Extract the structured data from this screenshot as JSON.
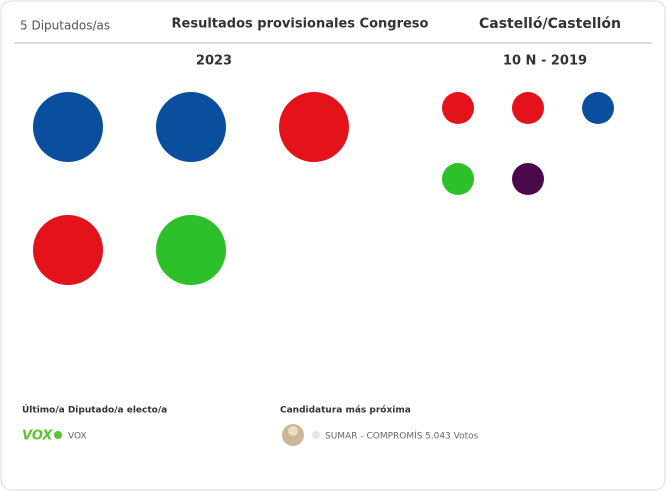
{
  "header": {
    "count_label": "5 Diputados/as",
    "title": "Resultados provisionales Congreso",
    "place": "Castelló/Castellón"
  },
  "panels": [
    {
      "title": "2023",
      "seats": [
        "#0a4f9e",
        "#0a4f9e",
        "#e3121b",
        "#e3121b",
        "#2ec02a"
      ]
    },
    {
      "title": "10 N - 2019",
      "seats": [
        "#e3121b",
        "#e3121b",
        "#0a4f9e",
        "#2ec02a",
        "#4a0a4a"
      ]
    }
  ],
  "footer": {
    "last_elected_label": "Último/a Diputado/a electo/a",
    "last_party_logo": "VOX",
    "last_party_color": "#5ec232",
    "last_party": "VOX",
    "nearest_label": "Candidatura más próxima",
    "nearest_party": "SUMAR - COMPROMÍS",
    "nearest_votes": "5.043 Votos"
  }
}
